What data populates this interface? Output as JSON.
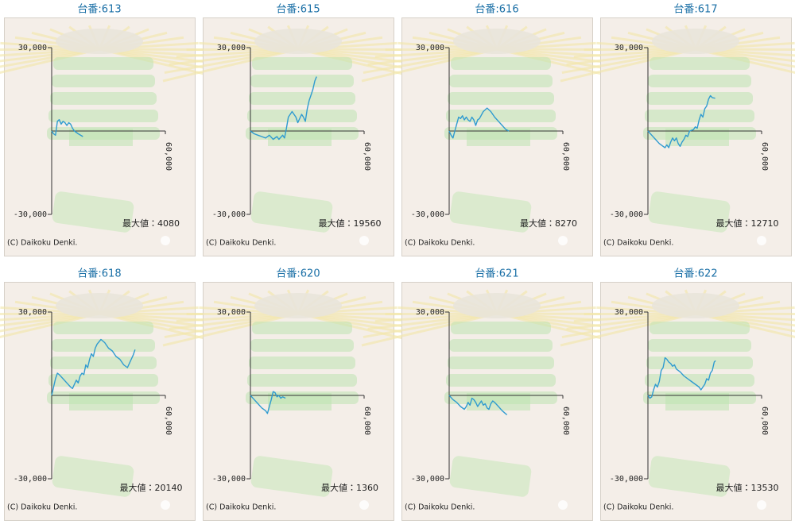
{
  "chart_data": [
    {
      "type": "line",
      "title": "台番:613",
      "color": "#2f9bd0",
      "xlim": [
        0,
        60000
      ],
      "xticks": [
        {
          "value": 60000,
          "label": "60,000"
        }
      ],
      "ylim": [
        -30000,
        30000
      ],
      "yticks": [
        {
          "value": 30000,
          "label": "30,000"
        },
        {
          "value": -30000,
          "label": "-30,000"
        }
      ],
      "annotation": "最大値：4080",
      "copyright": "(C) Daikoku Denki.",
      "x": [
        0,
        1000,
        2000,
        3000,
        4000,
        5000,
        6000,
        7000,
        8000,
        9000,
        10000,
        11000,
        12000,
        14000,
        16500
      ],
      "values": [
        0,
        -1000,
        -1500,
        3500,
        4080,
        2500,
        3500,
        3000,
        2000,
        3000,
        2500,
        1000,
        0,
        -1000,
        -2000
      ]
    },
    {
      "type": "line",
      "title": "台番:615",
      "color": "#2f9bd0",
      "xlim": [
        0,
        60000
      ],
      "xticks": [
        {
          "value": 60000,
          "label": "60,000"
        }
      ],
      "ylim": [
        -30000,
        30000
      ],
      "yticks": [
        {
          "value": 30000,
          "label": "30,000"
        },
        {
          "value": -30000,
          "label": "-30,000"
        }
      ],
      "annotation": "最大値：19560",
      "copyright": "(C) Daikoku Denki.",
      "x": [
        0,
        2000,
        4000,
        6000,
        8000,
        10000,
        12000,
        14000,
        15000,
        17000,
        18000,
        19000,
        20000,
        22000,
        24000,
        25000,
        27000,
        28000,
        29000,
        30000,
        31000,
        32000,
        33000,
        34000,
        34900
      ],
      "values": [
        0,
        -1000,
        -1500,
        -2000,
        -2500,
        -1500,
        -3000,
        -2000,
        -3000,
        -1500,
        -2500,
        1000,
        5000,
        7000,
        5000,
        3000,
        6000,
        5000,
        3500,
        8000,
        11000,
        13000,
        15000,
        18000,
        19560
      ]
    },
    {
      "type": "line",
      "title": "台番:616",
      "color": "#2f9bd0",
      "xlim": [
        0,
        60000
      ],
      "xticks": [
        {
          "value": 60000,
          "label": "60,000"
        }
      ],
      "ylim": [
        -30000,
        30000
      ],
      "yticks": [
        {
          "value": 30000,
          "label": "30,000"
        },
        {
          "value": -30000,
          "label": "-30,000"
        }
      ],
      "annotation": "最大値：8270",
      "copyright": "(C) Daikoku Denki.",
      "x": [
        0,
        1000,
        2000,
        3000,
        4000,
        5000,
        6000,
        7000,
        8000,
        9000,
        10000,
        11000,
        12000,
        13000,
        14000,
        15000,
        16000,
        18000,
        20000,
        22000,
        24000,
        26000,
        28000,
        30000,
        31500
      ],
      "values": [
        0,
        -1500,
        -2500,
        0,
        2500,
        5000,
        4500,
        5500,
        4000,
        5000,
        4000,
        3500,
        5000,
        4000,
        2000,
        4000,
        4500,
        7000,
        8270,
        7000,
        5000,
        3500,
        2000,
        500,
        0
      ]
    },
    {
      "type": "line",
      "title": "台番:617",
      "color": "#2f9bd0",
      "xlim": [
        0,
        60000
      ],
      "xticks": [
        {
          "value": 60000,
          "label": "60,000"
        }
      ],
      "ylim": [
        -30000,
        30000
      ],
      "yticks": [
        {
          "value": 30000,
          "label": "30,000"
        },
        {
          "value": -30000,
          "label": "-30,000"
        }
      ],
      "annotation": "最大値：12710",
      "copyright": "(C) Daikoku Denki.",
      "x": [
        0,
        2000,
        4000,
        6000,
        8000,
        9000,
        10000,
        11000,
        12000,
        13000,
        14000,
        15000,
        16000,
        17000,
        18000,
        19000,
        20000,
        21000,
        22000,
        24000,
        25000,
        26000,
        27000,
        28000,
        29000,
        30000,
        31000,
        32000,
        33000,
        34000,
        35500
      ],
      "values": [
        0,
        -1500,
        -3000,
        -4500,
        -5500,
        -6000,
        -5000,
        -6000,
        -4000,
        -2500,
        -3500,
        -2500,
        -4500,
        -5500,
        -4000,
        -3000,
        -1500,
        -2000,
        0,
        500,
        1500,
        1000,
        4000,
        6000,
        5000,
        8000,
        9000,
        11500,
        12710,
        12000,
        11800
      ]
    },
    {
      "type": "line",
      "title": "台番:618",
      "color": "#2f9bd0",
      "xlim": [
        0,
        60000
      ],
      "xticks": [
        {
          "value": 60000,
          "label": "60,000"
        }
      ],
      "ylim": [
        -30000,
        30000
      ],
      "yticks": [
        {
          "value": 30000,
          "label": "30,000"
        },
        {
          "value": -30000,
          "label": "-30,000"
        }
      ],
      "annotation": "最大値：20140",
      "copyright": "(C) Daikoku Denki.",
      "x": [
        0,
        1000,
        2000,
        3000,
        4000,
        6000,
        8000,
        10000,
        11000,
        12000,
        13000,
        14000,
        15000,
        16000,
        17000,
        18000,
        19000,
        20000,
        21000,
        22000,
        23000,
        24000,
        26000,
        28000,
        30000,
        32000,
        34000,
        36000,
        38000,
        40000,
        42000,
        43000,
        44000
      ],
      "values": [
        0,
        3000,
        6000,
        8000,
        7500,
        6000,
        4500,
        3000,
        2500,
        4000,
        5500,
        4500,
        7000,
        8000,
        7500,
        11000,
        10000,
        13000,
        15000,
        14000,
        17000,
        18500,
        20140,
        19000,
        17000,
        16000,
        14000,
        13000,
        11000,
        10000,
        13000,
        14500,
        16500
      ]
    },
    {
      "type": "line",
      "title": "台番:620",
      "color": "#2f9bd0",
      "xlim": [
        0,
        60000
      ],
      "xticks": [
        {
          "value": 60000,
          "label": "60,000"
        }
      ],
      "ylim": [
        -30000,
        30000
      ],
      "yticks": [
        {
          "value": 30000,
          "label": "30,000"
        },
        {
          "value": -30000,
          "label": "-30,000"
        }
      ],
      "annotation": "最大値：1360",
      "copyright": "(C) Daikoku Denki.",
      "x": [
        0,
        2000,
        4000,
        6000,
        8000,
        9000,
        10000,
        11000,
        12000,
        13000,
        14000,
        15000,
        16000,
        17000,
        18500
      ],
      "values": [
        0,
        -1500,
        -3000,
        -4500,
        -5500,
        -6500,
        -4000,
        -1500,
        1360,
        1000,
        -500,
        0,
        -1000,
        -500,
        -1000
      ]
    },
    {
      "type": "line",
      "title": "台番:621",
      "color": "#2f9bd0",
      "xlim": [
        0,
        60000
      ],
      "xticks": [
        {
          "value": 60000,
          "label": "60,000"
        }
      ],
      "ylim": [
        -30000,
        30000
      ],
      "yticks": [
        {
          "value": 30000,
          "label": "30,000"
        },
        {
          "value": -30000,
          "label": "-30,000"
        }
      ],
      "copyright": "(C) Daikoku Denki.",
      "x": [
        0,
        2000,
        4000,
        6000,
        8000,
        9000,
        10000,
        11000,
        12000,
        13000,
        14000,
        15000,
        16000,
        17000,
        18000,
        19000,
        20000,
        21000,
        22000,
        23000,
        24000,
        26000,
        28000,
        30500
      ],
      "values": [
        0,
        -1500,
        -2500,
        -4000,
        -5000,
        -4000,
        -2500,
        -3500,
        -1000,
        -1500,
        -2500,
        -4000,
        -3000,
        -2000,
        -3500,
        -3000,
        -4500,
        -5000,
        -3000,
        -2000,
        -2500,
        -4000,
        -5500,
        -7000
      ]
    },
    {
      "type": "line",
      "title": "台番:622",
      "color": "#2f9bd0",
      "xlim": [
        0,
        60000
      ],
      "xticks": [
        {
          "value": 60000,
          "label": "60,000"
        }
      ],
      "ylim": [
        -30000,
        30000
      ],
      "yticks": [
        {
          "value": 30000,
          "label": "30,000"
        },
        {
          "value": -30000,
          "label": "-30,000"
        }
      ],
      "annotation": "最大値：13530",
      "copyright": "(C) Daikoku Denki.",
      "x": [
        0,
        1000,
        2000,
        3000,
        4000,
        5000,
        6000,
        7000,
        8000,
        9000,
        10000,
        11000,
        12000,
        13000,
        14000,
        15000,
        17000,
        19000,
        21000,
        23000,
        25000,
        27000,
        28000,
        30000,
        31000,
        32000,
        33000,
        34000,
        35000,
        35700
      ],
      "values": [
        0,
        -1000,
        -500,
        2000,
        4000,
        3000,
        5000,
        9000,
        10000,
        13530,
        13000,
        12000,
        11500,
        10500,
        11000,
        9500,
        8500,
        7000,
        6000,
        5000,
        4000,
        3000,
        2000,
        4000,
        6000,
        5500,
        8000,
        9000,
        12000,
        12500
      ]
    }
  ]
}
